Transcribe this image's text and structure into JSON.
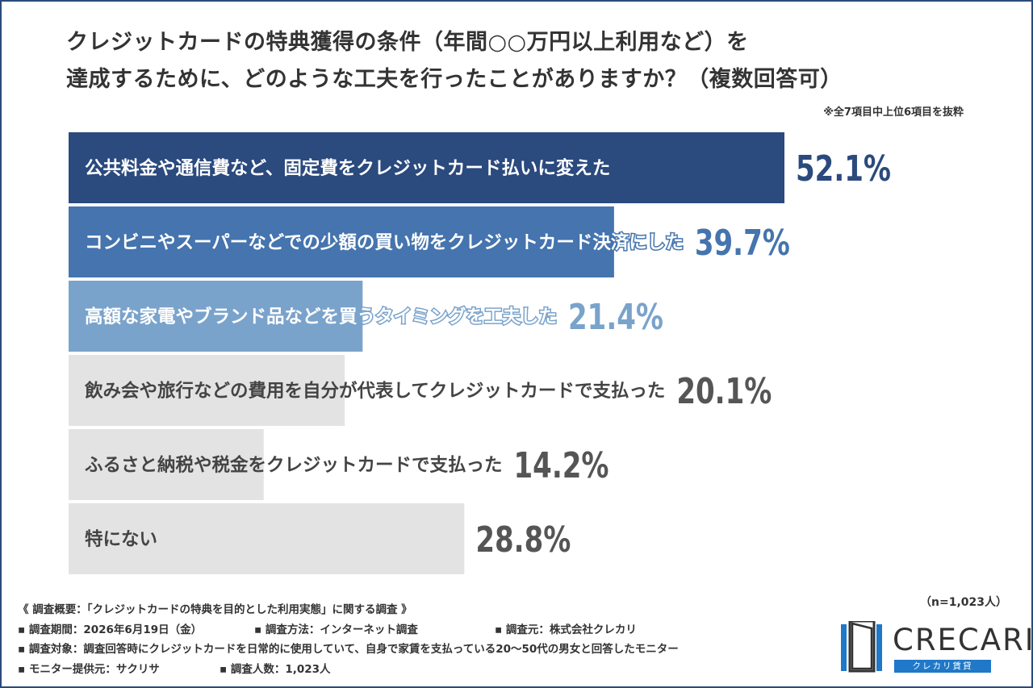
{
  "title": {
    "line1": "クレジットカードの特典獲得の条件（年間○○万円以上利用など）を",
    "line2": "達成するために、どのような工夫を行ったことがありますか？（複数回答可）"
  },
  "note": "※全7項目中上位6項目を抜粋",
  "chart_data": {
    "type": "bar",
    "orientation": "horizontal",
    "categories": [
      "公共料金や通信費など、固定費をクレジットカード払いに変えた",
      "コンビニやスーパーなどでの少額の買い物をクレジットカード決済にした",
      "高額な家電やブランド品などを買うタイミングを工夫した",
      "飲み会や旅行などの費用を自分が代表してクレジットカードで支払った",
      "ふるさと納税や税金をクレジットカードで支払った",
      "特にない"
    ],
    "values": [
      52.1,
      39.7,
      21.4,
      20.1,
      14.2,
      28.8
    ],
    "value_labels": [
      "52.1%",
      "39.7%",
      "21.4%",
      "20.1%",
      "14.2%",
      "28.8%"
    ],
    "unit": "%",
    "bar_colors": [
      "#2b4a7e",
      "#4574ae",
      "#7aa3cb",
      "#e3e3e3",
      "#e3e3e3",
      "#e3e3e3"
    ],
    "value_colors": [
      "#2b4a7e",
      "#4574ae",
      "#7aa3cb",
      "#555555",
      "#555555",
      "#555555"
    ],
    "xlim": [
      0,
      100
    ],
    "grid": false,
    "legend": "none"
  },
  "survey": {
    "overview": "《 調査概要：「クレジットカードの特典を目的とした利用実態」に関する調査 》",
    "period": "▪ 調査期間：2026年6月19日（金）",
    "method": "▪ 調査方法：インターネット調査",
    "source": "▪ 調査元：株式会社クレカリ",
    "target": "▪ 調査対象：調査回答時にクレジットカードを日常的に使用していて、自身で家賃を支払っている20〜50代の男女と回答したモニター",
    "monitor": "▪ モニター提供元：サクリサ",
    "count": "▪ 調査人数：1,023人"
  },
  "n_label": "（n=1,023人）",
  "logo": {
    "name": "CRECARI",
    "sub": "クレカリ賃貸"
  }
}
